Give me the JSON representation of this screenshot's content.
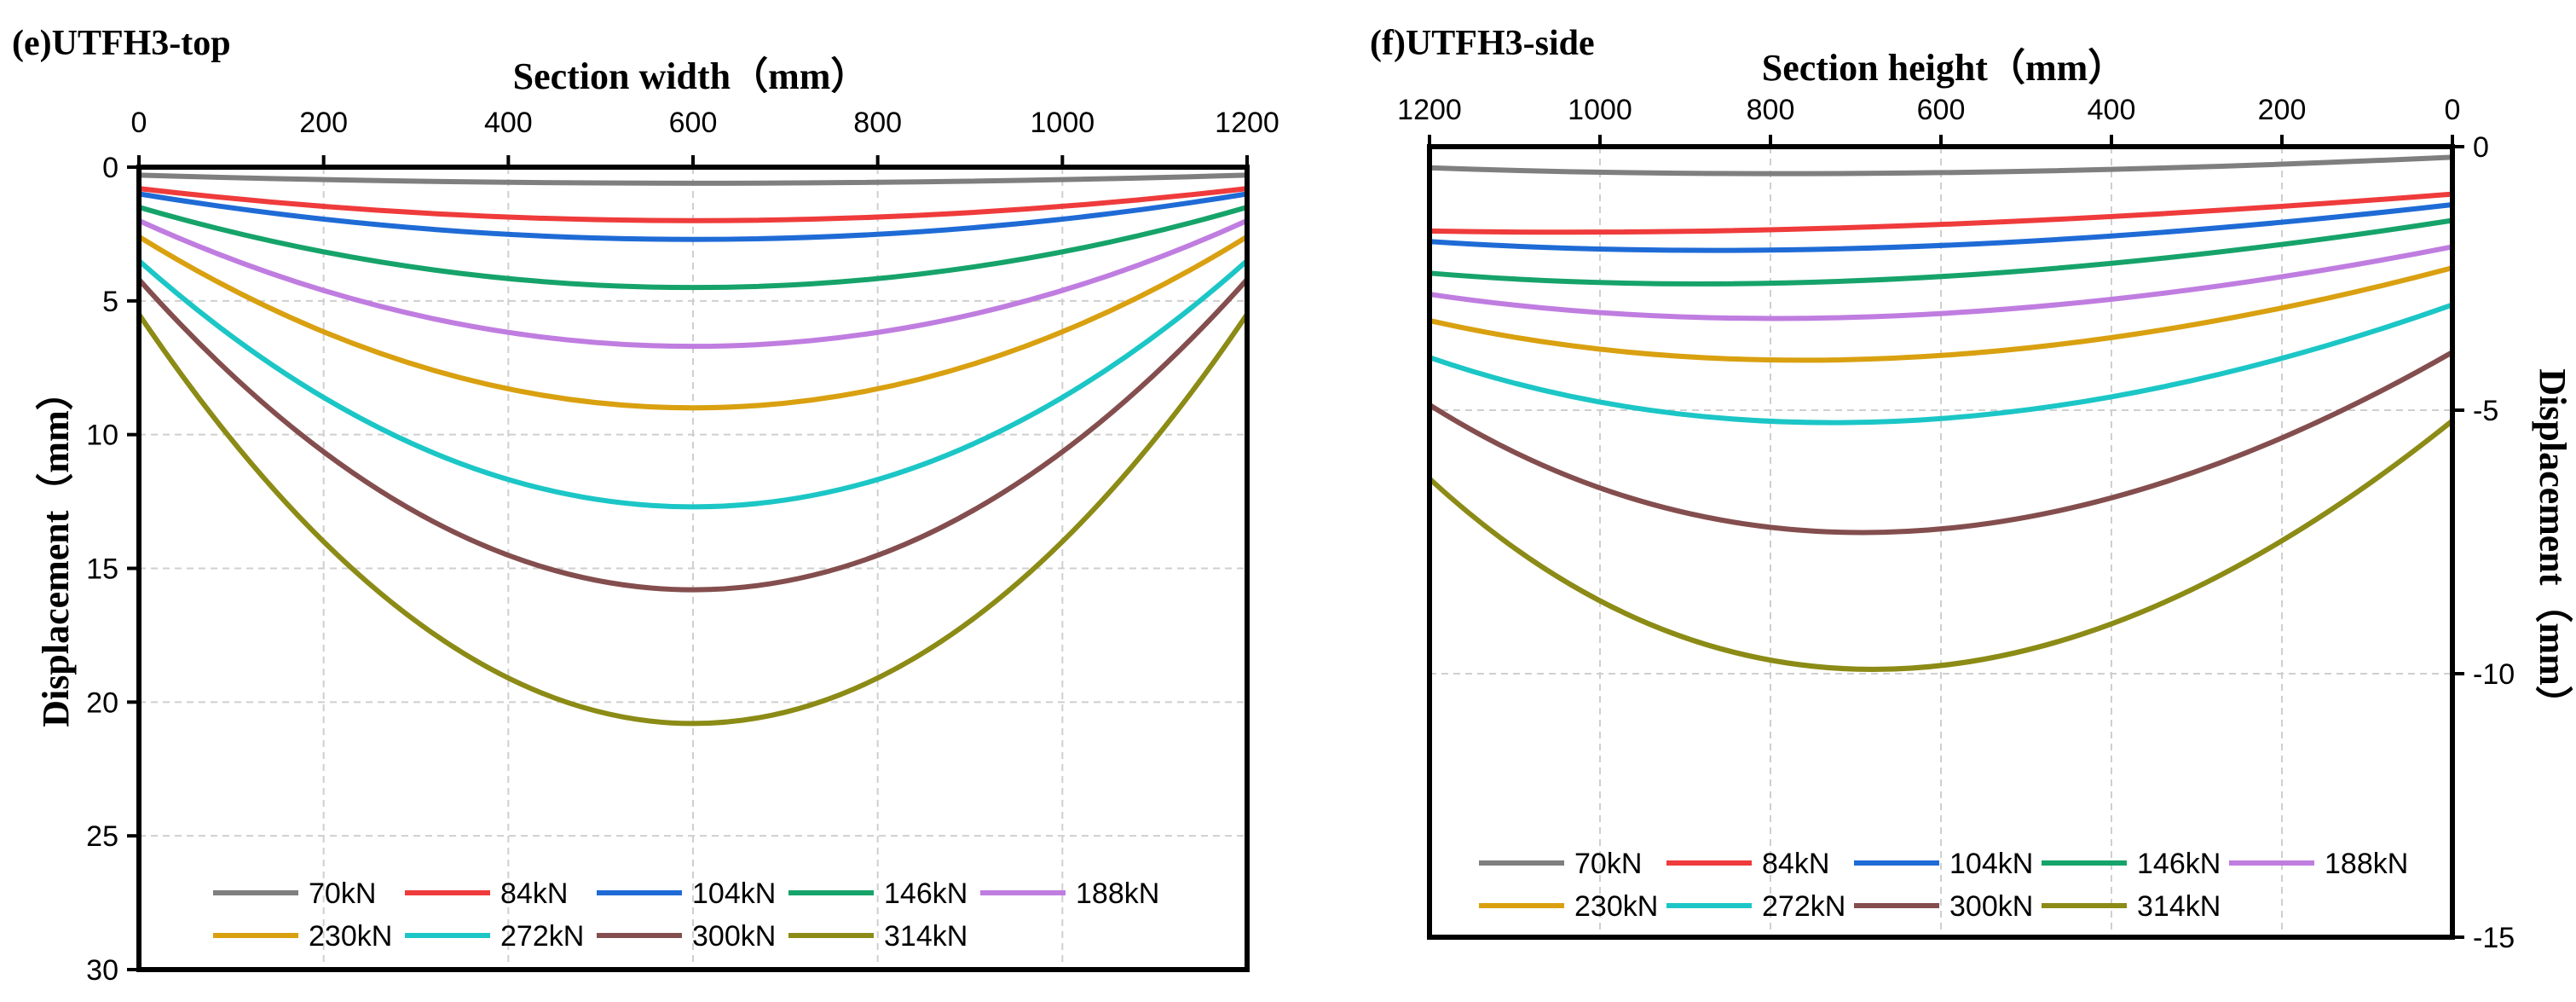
{
  "chart_data": [
    {
      "type": "line",
      "title": "(e)UTFH3-top",
      "xlabel": "Section width（mm）",
      "ylabel": "Displacement（mm）",
      "xlim": [
        0,
        1200
      ],
      "ylim": [
        0,
        30
      ],
      "y_inverted": true,
      "x_ticks": [
        "0",
        "200",
        "400",
        "600",
        "800",
        "1000",
        "1200"
      ],
      "y_ticks": [
        "0",
        "5",
        "10",
        "15",
        "20",
        "25",
        "30"
      ],
      "legend_position": "bottom",
      "series": [
        {
          "name": "70kN",
          "color": "#7f7f7f",
          "x": [
            0,
            600,
            1200
          ],
          "y": [
            0.3,
            0.6,
            0.3
          ]
        },
        {
          "name": "84kN",
          "color": "#ef3b3b",
          "x": [
            0,
            600,
            1200
          ],
          "y": [
            0.8,
            2.0,
            0.8
          ]
        },
        {
          "name": "104kN",
          "color": "#1f6bd6",
          "x": [
            0,
            600,
            1200
          ],
          "y": [
            1.0,
            2.7,
            1.0
          ]
        },
        {
          "name": "146kN",
          "color": "#16a36a",
          "x": [
            0,
            600,
            1200
          ],
          "y": [
            1.5,
            4.5,
            1.5
          ]
        },
        {
          "name": "188kN",
          "color": "#c07de0",
          "x": [
            0,
            600,
            1200
          ],
          "y": [
            2.0,
            6.7,
            2.0
          ]
        },
        {
          "name": "230kN",
          "color": "#d9a010",
          "x": [
            0,
            600,
            1200
          ],
          "y": [
            2.6,
            9.0,
            2.6
          ]
        },
        {
          "name": "272kN",
          "color": "#1cc6c6",
          "x": [
            0,
            600,
            1200
          ],
          "y": [
            3.5,
            12.7,
            3.5
          ]
        },
        {
          "name": "300kN",
          "color": "#844e4e",
          "x": [
            0,
            600,
            1200
          ],
          "y": [
            4.2,
            15.8,
            4.2
          ]
        },
        {
          "name": "314kN",
          "color": "#8b8b16",
          "x": [
            0,
            600,
            1200
          ],
          "y": [
            5.5,
            20.8,
            5.5
          ]
        }
      ]
    },
    {
      "type": "line",
      "title": "(f)UTFH3-side",
      "xlabel": "Section height（mm）",
      "ylabel": "Displacement（mm）",
      "xlim": [
        1200,
        0
      ],
      "ylim": [
        -15,
        0
      ],
      "x_ticks": [
        "1200",
        "1000",
        "800",
        "600",
        "400",
        "200",
        "0"
      ],
      "y_ticks": [
        "0",
        "-5",
        "-10",
        "-15"
      ],
      "legend_position": "bottom",
      "series": [
        {
          "name": "70kN",
          "color": "#7f7f7f",
          "x": [
            1200,
            640,
            0
          ],
          "y": [
            -0.4,
            -0.5,
            -0.2
          ]
        },
        {
          "name": "84kN",
          "color": "#ef3b3b",
          "x": [
            1200,
            640,
            0
          ],
          "y": [
            -1.6,
            -1.5,
            -0.9
          ]
        },
        {
          "name": "104kN",
          "color": "#1f6bd6",
          "x": [
            1200,
            640,
            0
          ],
          "y": [
            -1.8,
            -1.9,
            -1.1
          ]
        },
        {
          "name": "146kN",
          "color": "#16a36a",
          "x": [
            1200,
            640,
            0
          ],
          "y": [
            -2.4,
            -2.5,
            -1.4
          ]
        },
        {
          "name": "188kN",
          "color": "#c07de0",
          "x": [
            1200,
            640,
            0
          ],
          "y": [
            -2.8,
            -3.2,
            -1.9
          ]
        },
        {
          "name": "230kN",
          "color": "#d9a010",
          "x": [
            1200,
            640,
            0
          ],
          "y": [
            -3.3,
            -4.0,
            -2.3
          ]
        },
        {
          "name": "272kN",
          "color": "#1cc6c6",
          "x": [
            1200,
            640,
            0
          ],
          "y": [
            -4.0,
            -5.2,
            -3.0
          ]
        },
        {
          "name": "300kN",
          "color": "#844e4e",
          "x": [
            1200,
            640,
            0
          ],
          "y": [
            -4.9,
            -7.3,
            -3.9
          ]
        },
        {
          "name": "314kN",
          "color": "#8b8b16",
          "x": [
            1200,
            640,
            0
          ],
          "y": [
            -6.3,
            -9.9,
            -5.2
          ]
        }
      ]
    }
  ]
}
